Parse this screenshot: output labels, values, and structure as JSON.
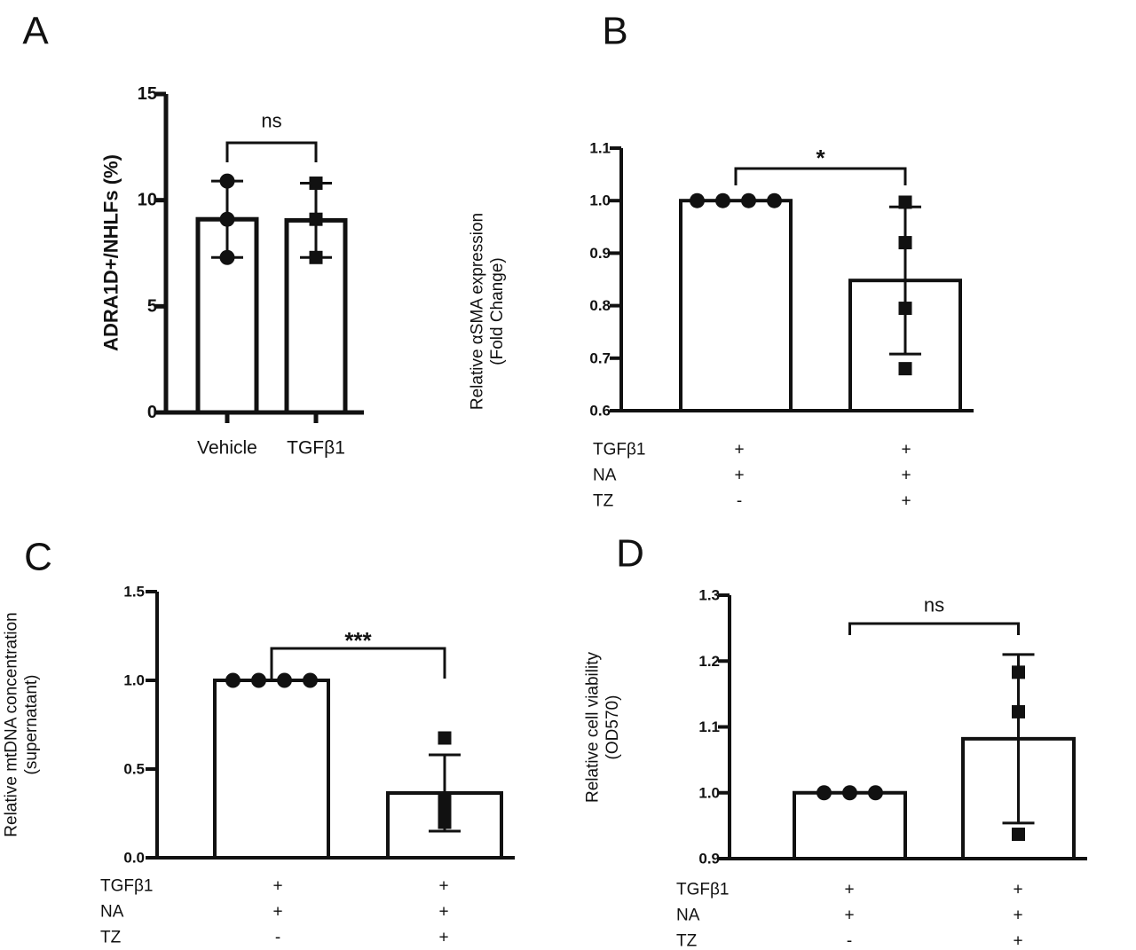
{
  "chart_data": [
    {
      "panel": "A",
      "type": "bar",
      "ylabel": "ADRA1D+/NHLFs (%)",
      "ylim": [
        0,
        15
      ],
      "yticks": [
        "0",
        "5",
        "10",
        "15"
      ],
      "categories": [
        "Vehicle",
        "TGFβ1"
      ],
      "values": [
        9.1,
        9.05
      ],
      "errors": [
        1.8,
        1.75
      ],
      "markers": [
        "circle",
        "square"
      ],
      "points": [
        [
          10.9,
          9.1,
          7.3
        ],
        [
          10.8,
          9.1,
          7.3
        ]
      ],
      "significance": "ns"
    },
    {
      "panel": "B",
      "type": "bar",
      "ylabel": "Relative αSMA expression\n(Fold Change)",
      "ylim": [
        0.6,
        1.1
      ],
      "yticks": [
        "0.6",
        "0.7",
        "0.8",
        "0.9",
        "1.0",
        "1.1"
      ],
      "values": [
        1.0,
        0.848
      ],
      "errors": [
        0,
        0.14
      ],
      "markers": [
        "circle",
        "square"
      ],
      "points": [
        [
          1.0,
          1.0,
          1.0,
          1.0
        ],
        [
          0.997,
          0.92,
          0.795,
          0.68
        ]
      ],
      "significance": "*",
      "conditions": [
        {
          "name": "TGFβ1",
          "values": [
            "+",
            "+"
          ]
        },
        {
          "name": "NA",
          "values": [
            "+",
            "+"
          ]
        },
        {
          "name": "TZ",
          "values": [
            "-",
            "+"
          ]
        }
      ]
    },
    {
      "panel": "C",
      "type": "bar",
      "ylabel": "Relative mtDNA concentration\n(supernatant)",
      "ylim": [
        0.0,
        1.5
      ],
      "yticks": [
        "0.0",
        "0.5",
        "1.0",
        "1.5"
      ],
      "values": [
        1.0,
        0.365
      ],
      "errors": [
        0,
        0.215
      ],
      "markers": [
        "circle",
        "square"
      ],
      "points": [
        [
          1.0,
          1.0,
          1.0,
          1.0
        ],
        [
          0.675,
          0.32,
          0.25,
          0.2
        ]
      ],
      "significance": "***",
      "conditions": [
        {
          "name": "TGFβ1",
          "values": [
            "+",
            "+"
          ]
        },
        {
          "name": "NA",
          "values": [
            "+",
            "+"
          ]
        },
        {
          "name": "TZ",
          "values": [
            "-",
            "+"
          ]
        }
      ]
    },
    {
      "panel": "D",
      "type": "bar",
      "ylabel": "Relative cell viability\n(OD570)",
      "ylim": [
        0.9,
        1.3
      ],
      "yticks": [
        "0.9",
        "1.0",
        "1.1",
        "1.2",
        "1.3"
      ],
      "values": [
        1.0,
        1.082
      ],
      "errors": [
        0,
        0.128
      ],
      "markers": [
        "circle",
        "square"
      ],
      "points": [
        [
          1.0,
          1.0,
          1.0
        ],
        [
          1.183,
          1.123,
          0.937
        ]
      ],
      "significance": "ns",
      "conditions": [
        {
          "name": "TGFβ1",
          "values": [
            "+",
            "+"
          ]
        },
        {
          "name": "NA",
          "values": [
            "+",
            "+"
          ]
        },
        {
          "name": "TZ",
          "values": [
            "-",
            "+"
          ]
        }
      ]
    }
  ]
}
